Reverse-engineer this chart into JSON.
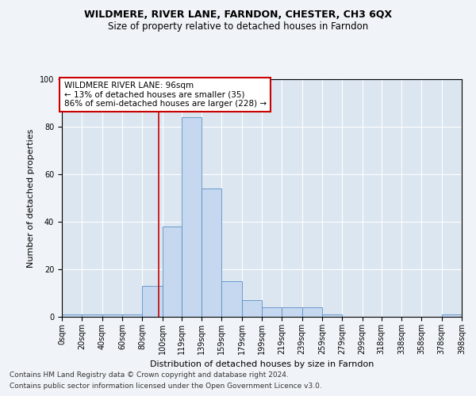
{
  "title1": "WILDMERE, RIVER LANE, FARNDON, CHESTER, CH3 6QX",
  "title2": "Size of property relative to detached houses in Farndon",
  "xlabel": "Distribution of detached houses by size in Farndon",
  "ylabel": "Number of detached properties",
  "footer1": "Contains HM Land Registry data © Crown copyright and database right 2024.",
  "footer2": "Contains public sector information licensed under the Open Government Licence v3.0.",
  "annotation_line1": "WILDMERE RIVER LANE: 96sqm",
  "annotation_line2": "← 13% of detached houses are smaller (35)",
  "annotation_line3": "86% of semi-detached houses are larger (228) →",
  "property_size": 96,
  "bar_color": "#c5d8f0",
  "bar_edge_color": "#5b8fc5",
  "vline_color": "#cc0000",
  "background_color": "#dce6f0",
  "fig_background_color": "#f0f4f8",
  "annotation_box_color": "#ffffff",
  "annotation_box_edge": "#cc0000",
  "bins": [
    0,
    20,
    40,
    60,
    80,
    100,
    119,
    139,
    159,
    179,
    199,
    219,
    239,
    259,
    279,
    299,
    318,
    338,
    358,
    378,
    398
  ],
  "counts": [
    1,
    1,
    1,
    1,
    13,
    38,
    84,
    54,
    15,
    7,
    4,
    4,
    4,
    1,
    0,
    0,
    0,
    0,
    0,
    1
  ],
  "ylim": [
    0,
    100
  ],
  "yticks": [
    0,
    20,
    40,
    60,
    80,
    100
  ],
  "grid_color": "#ffffff",
  "title1_fontsize": 9,
  "title2_fontsize": 8.5,
  "axis_label_fontsize": 8,
  "tick_fontsize": 7,
  "annotation_fontsize": 7.5,
  "footer_fontsize": 6.5
}
